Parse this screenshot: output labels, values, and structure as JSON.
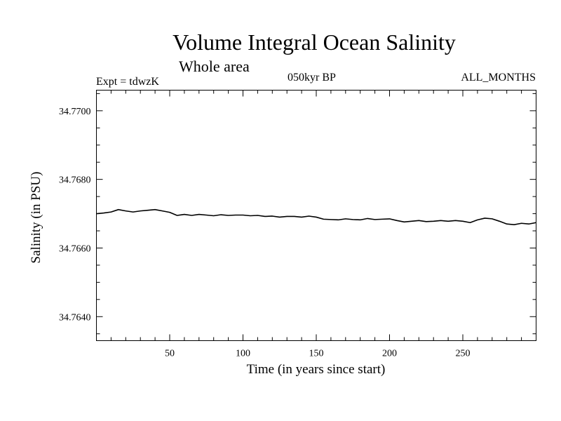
{
  "chart_data": {
    "type": "line",
    "title": "Volume Integral Ocean Salinity",
    "subtitle": "Whole area",
    "experiment": "Expt = tdwzK",
    "period": "050kyr BP",
    "months": "ALL_MONTHS",
    "xlabel": "Time (in years since start)",
    "ylabel": "Salinity (in PSU)",
    "xlim": [
      0,
      300
    ],
    "ylim": [
      34.7633,
      34.7706
    ],
    "x_ticks": [
      50,
      100,
      150,
      200,
      250
    ],
    "x_tick_labels": [
      "50",
      "100",
      "150",
      "200",
      "250"
    ],
    "y_ticks": [
      34.764,
      34.766,
      34.768,
      34.77
    ],
    "y_tick_labels": [
      "34.7640",
      "34.7660",
      "34.7680",
      "34.7700"
    ],
    "grid": false,
    "series": [
      {
        "color": "#000000",
        "x": [
          0,
          5,
          10,
          15,
          20,
          25,
          30,
          35,
          40,
          45,
          50,
          55,
          60,
          65,
          70,
          75,
          80,
          85,
          90,
          95,
          100,
          105,
          110,
          115,
          120,
          125,
          130,
          135,
          140,
          145,
          150,
          155,
          160,
          165,
          170,
          175,
          180,
          185,
          190,
          195,
          200,
          205,
          210,
          215,
          220,
          225,
          230,
          235,
          240,
          245,
          250,
          255,
          260,
          265,
          270,
          275,
          280,
          285,
          290,
          295,
          300
        ],
        "values": [
          34.767,
          34.76702,
          34.76705,
          34.76712,
          34.76708,
          34.76705,
          34.76708,
          34.7671,
          34.76712,
          34.76708,
          34.76704,
          34.76695,
          34.76698,
          34.76695,
          34.76698,
          34.76696,
          34.76694,
          34.76697,
          34.76695,
          34.76696,
          34.76696,
          34.76694,
          34.76695,
          34.76692,
          34.76693,
          34.7669,
          34.76692,
          34.76692,
          34.7669,
          34.76693,
          34.7669,
          34.76684,
          34.76683,
          34.76682,
          34.76685,
          34.76683,
          34.76682,
          34.76686,
          34.76683,
          34.76684,
          34.76685,
          34.7668,
          34.76676,
          34.76678,
          34.7668,
          34.76677,
          34.76678,
          34.7668,
          34.76678,
          34.7668,
          34.76678,
          34.76674,
          34.76682,
          34.76687,
          34.76685,
          34.76678,
          34.7667,
          34.76668,
          34.76672,
          34.7667,
          34.76674
        ]
      }
    ]
  }
}
